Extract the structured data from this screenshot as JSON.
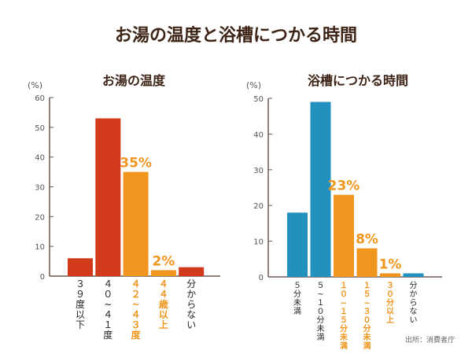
{
  "title": "お湯の温度と浴槽につかる時間",
  "source": "出所：消費者庁",
  "colors": {
    "title": "#3d2416",
    "left_bar": "#d13b1c",
    "right_bar": "#2391be",
    "highlight": "#f0951e",
    "axis": "#6b5a50"
  },
  "chart_data": [
    {
      "type": "bar",
      "title": "お湯の温度",
      "ylabel": "(%)",
      "ylim": [
        0,
        60
      ],
      "yticks": [
        0,
        10,
        20,
        30,
        40,
        50,
        60
      ],
      "categories": [
        "３９度以下",
        "４０〜４１度",
        "４２〜４３度",
        "４４歳以上",
        "分からない"
      ],
      "values": [
        6,
        53,
        35,
        2,
        3
      ],
      "highlighted": [
        false,
        false,
        true,
        true,
        false
      ],
      "data_labels": [
        "",
        "",
        "35%",
        "2%",
        ""
      ]
    },
    {
      "type": "bar",
      "title": "浴槽につかる時間",
      "ylabel": "(%)",
      "ylim": [
        0,
        50
      ],
      "yticks": [
        0,
        10,
        20,
        30,
        40,
        50
      ],
      "categories": [
        "５分未満",
        "５〜１０分未満",
        "１０〜１５分未満",
        "１５〜３０分未満",
        "３０分以上",
        "分からない"
      ],
      "values": [
        18,
        49,
        23,
        8,
        1,
        1
      ],
      "highlighted": [
        false,
        false,
        true,
        true,
        true,
        false
      ],
      "data_labels": [
        "",
        "",
        "23%",
        "8%",
        "1%",
        ""
      ]
    }
  ]
}
